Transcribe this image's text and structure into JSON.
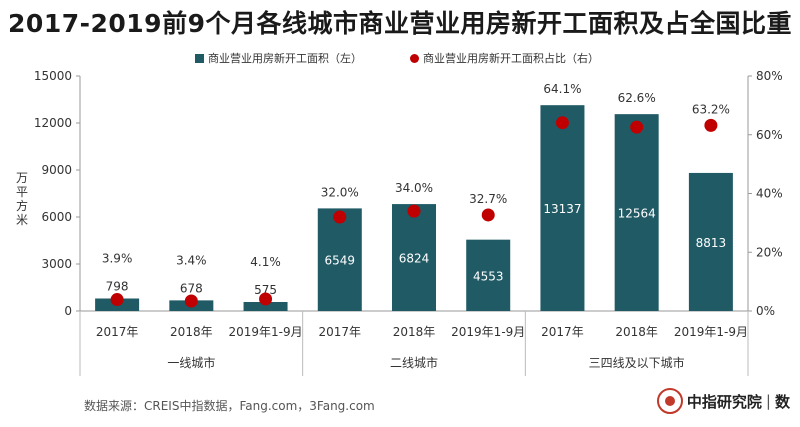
{
  "chart_data": {
    "type": "bar",
    "title": "2017-2019前9个月各线城市商业营业用房新开工面积及占全国比重",
    "ylabel": "万平方米",
    "ylim": [
      0,
      15000
    ],
    "yticks": [
      "0",
      "3000",
      "6000",
      "9000",
      "12000",
      "15000"
    ],
    "y2lim": [
      0,
      80
    ],
    "y2ticks": [
      "0%",
      "20%",
      "40%",
      "60%",
      "80%"
    ],
    "categories": [
      "2017年",
      "2018年",
      "2019年1-9月",
      "2017年",
      "2018年",
      "2019年1-9月",
      "2017年",
      "2018年",
      "2019年1-9月"
    ],
    "groups": [
      {
        "label": "一线城市",
        "count": 3
      },
      {
        "label": "二线城市",
        "count": 3
      },
      {
        "label": "三四线及以下城市",
        "count": 3
      }
    ],
    "series": [
      {
        "name": "商业营业用房新开工面积（左）",
        "type": "bar",
        "axis": "left",
        "color": "#1f5a65",
        "values": [
          798,
          678,
          575,
          6549,
          6824,
          4553,
          13137,
          12564,
          8813
        ],
        "labels": [
          "798",
          "678",
          "575",
          "6549",
          "6824",
          "4553",
          "13137",
          "12564",
          "8813"
        ]
      },
      {
        "name": "商业营业用房新开工面积占比（右）",
        "type": "scatter",
        "axis": "right",
        "color": "#c00000",
        "values": [
          3.9,
          3.4,
          4.1,
          32.0,
          34.0,
          32.7,
          64.1,
          62.6,
          63.2
        ],
        "labels": [
          "3.9%",
          "3.4%",
          "4.1%",
          "32.0%",
          "34.0%",
          "32.7%",
          "64.1%",
          "62.6%",
          "63.2%"
        ]
      }
    ],
    "grid": false,
    "legend_position": "top"
  },
  "footer": {
    "source": "数据来源：CREIS中指数据，Fang.com，3Fang.com",
    "brand": "中指研究院",
    "brand_suffix": "数"
  }
}
